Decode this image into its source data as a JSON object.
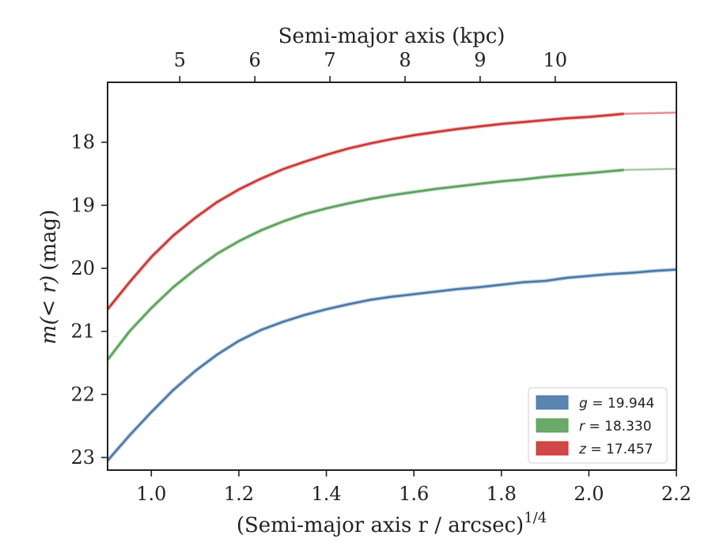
{
  "chart_data": {
    "type": "line",
    "xlabel": "(Semi-major axis r / arcsec)",
    "xlabel_sup": "1/4",
    "ylabel": "(mag)",
    "ylabel_math": "m(< r)",
    "top_xlabel": "Semi-major axis (kpc)",
    "xlim": [
      0.9,
      2.2
    ],
    "ylim": [
      23.2,
      17.05
    ],
    "y_inverted": true,
    "xticks": [
      1.0,
      1.2,
      1.4,
      1.6,
      1.8,
      2.0,
      2.2
    ],
    "xtick_labels": [
      "1.0",
      "1.2",
      "1.4",
      "1.6",
      "1.8",
      "2.0",
      "2.2"
    ],
    "yticks": [
      18,
      19,
      20,
      21,
      22,
      23
    ],
    "ytick_labels": [
      "18",
      "19",
      "20",
      "21",
      "22",
      "23"
    ],
    "top_ticks_kpc": [
      5,
      6,
      7,
      8,
      9,
      10
    ],
    "top_tick_labels": [
      "5",
      "6",
      "7",
      "8",
      "9",
      "10"
    ],
    "top_axis_map": {
      "kpc": [
        5,
        10
      ],
      "x": [
        1.065,
        1.923
      ]
    },
    "legend_position": "lower right",
    "grid": false,
    "series": [
      {
        "name": "g = 19.944",
        "legend_var": "g",
        "legend_val": "19.944",
        "color": "#4878a8",
        "x": [
          0.9,
          0.95,
          1.0,
          1.05,
          1.1,
          1.15,
          1.2,
          1.25,
          1.3,
          1.35,
          1.4,
          1.45,
          1.5,
          1.55,
          1.6,
          1.65,
          1.7,
          1.75,
          1.8,
          1.85,
          1.9,
          1.95,
          2.0,
          2.05,
          2.1,
          2.15,
          2.2
        ],
        "y": [
          23.05,
          22.65,
          22.28,
          21.93,
          21.63,
          21.37,
          21.15,
          20.98,
          20.85,
          20.74,
          20.65,
          20.57,
          20.5,
          20.45,
          20.41,
          20.37,
          20.33,
          20.3,
          20.26,
          20.22,
          20.2,
          20.15,
          20.12,
          20.09,
          20.07,
          20.04,
          20.02
        ]
      },
      {
        "name": "r = 18.330",
        "legend_var": "r",
        "legend_val": "18.330",
        "color": "#5aa05a",
        "x": [
          0.9,
          0.95,
          1.0,
          1.05,
          1.1,
          1.15,
          1.2,
          1.25,
          1.3,
          1.35,
          1.4,
          1.45,
          1.5,
          1.55,
          1.6,
          1.65,
          1.7,
          1.75,
          1.8,
          1.85,
          1.9,
          1.95,
          2.0,
          2.05,
          2.08,
          2.2
        ],
        "y": [
          21.45,
          21.0,
          20.63,
          20.3,
          20.02,
          19.77,
          19.57,
          19.4,
          19.26,
          19.14,
          19.05,
          18.97,
          18.9,
          18.84,
          18.79,
          18.74,
          18.7,
          18.66,
          18.62,
          18.59,
          18.55,
          18.52,
          18.49,
          18.46,
          18.44,
          18.42
        ]
      },
      {
        "name": "z = 17.457",
        "legend_var": "z",
        "legend_val": "17.457",
        "color": "#cc3333",
        "x": [
          0.9,
          0.95,
          1.0,
          1.05,
          1.1,
          1.15,
          1.2,
          1.25,
          1.3,
          1.35,
          1.4,
          1.45,
          1.5,
          1.55,
          1.6,
          1.65,
          1.7,
          1.75,
          1.8,
          1.85,
          1.9,
          1.95,
          2.0,
          2.05,
          2.08,
          2.2
        ],
        "y": [
          20.65,
          20.22,
          19.82,
          19.48,
          19.2,
          18.95,
          18.75,
          18.58,
          18.43,
          18.31,
          18.2,
          18.1,
          18.02,
          17.95,
          17.89,
          17.84,
          17.79,
          17.75,
          17.71,
          17.68,
          17.65,
          17.62,
          17.6,
          17.57,
          17.55,
          17.53
        ]
      }
    ],
    "solid_until_x": [
      2.2,
      2.08,
      2.08
    ]
  }
}
